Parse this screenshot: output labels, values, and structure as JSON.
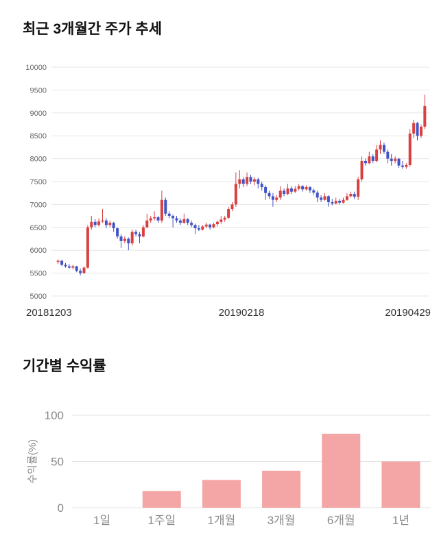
{
  "chart_data": [
    {
      "type": "candlestick",
      "title": "최근 3개월간 주가 추세",
      "x_labels": [
        "20181203",
        "20190218",
        "20190429"
      ],
      "ylim": [
        5000,
        10000
      ],
      "y_ticks": [
        5000,
        5500,
        6000,
        6500,
        7000,
        7500,
        8000,
        8500,
        9000,
        9500,
        10000
      ],
      "grid": true,
      "up_color": "#d94040",
      "down_color": "#4353c6",
      "axis_text_color": "#666666",
      "x_label_color": "#333333",
      "grid_color": "#e6e6e6",
      "candles_ohlc": [
        [
          5750,
          5800,
          5700,
          5770
        ],
        [
          5770,
          5790,
          5650,
          5680
        ],
        [
          5680,
          5720,
          5620,
          5650
        ],
        [
          5650,
          5700,
          5600,
          5620
        ],
        [
          5620,
          5680,
          5580,
          5650
        ],
        [
          5650,
          5660,
          5520,
          5550
        ],
        [
          5550,
          5600,
          5450,
          5500
        ],
        [
          5500,
          5650,
          5480,
          5620
        ],
        [
          5620,
          6550,
          5600,
          6500
        ],
        [
          6500,
          6750,
          6450,
          6620
        ],
        [
          6620,
          6680,
          6500,
          6550
        ],
        [
          6550,
          6700,
          6520,
          6630
        ],
        [
          6630,
          6900,
          6600,
          6650
        ],
        [
          6650,
          6700,
          6480,
          6550
        ],
        [
          6550,
          6650,
          6500,
          6600
        ],
        [
          6600,
          6620,
          6400,
          6480
        ],
        [
          6480,
          6500,
          6250,
          6300
        ],
        [
          6300,
          6350,
          6050,
          6200
        ],
        [
          6200,
          6300,
          6150,
          6250
        ],
        [
          6250,
          6280,
          6000,
          6150
        ],
        [
          6150,
          6450,
          6100,
          6400
        ],
        [
          6400,
          6450,
          6300,
          6350
        ],
        [
          6350,
          6400,
          6150,
          6300
        ],
        [
          6300,
          6550,
          6280,
          6500
        ],
        [
          6500,
          6800,
          6480,
          6650
        ],
        [
          6650,
          6750,
          6600,
          6700
        ],
        [
          6700,
          6850,
          6650,
          6720
        ],
        [
          6720,
          6750,
          6600,
          6650
        ],
        [
          6650,
          7300,
          6600,
          7100
        ],
        [
          7100,
          7150,
          6750,
          6800
        ],
        [
          6800,
          6850,
          6700,
          6750
        ],
        [
          6750,
          6780,
          6500,
          6700
        ],
        [
          6700,
          6750,
          6600,
          6650
        ],
        [
          6650,
          6700,
          6550,
          6600
        ],
        [
          6600,
          6800,
          6580,
          6680
        ],
        [
          6680,
          6700,
          6550,
          6600
        ],
        [
          6600,
          6650,
          6500,
          6550
        ],
        [
          6550,
          6580,
          6350,
          6480
        ],
        [
          6480,
          6550,
          6420,
          6450
        ],
        [
          6450,
          6550,
          6430,
          6520
        ],
        [
          6520,
          6600,
          6480,
          6560
        ],
        [
          6560,
          6580,
          6450,
          6500
        ],
        [
          6500,
          6600,
          6480,
          6570
        ],
        [
          6570,
          6650,
          6520,
          6620
        ],
        [
          6620,
          6750,
          6580,
          6670
        ],
        [
          6670,
          6750,
          6620,
          6710
        ],
        [
          6710,
          6950,
          6680,
          6900
        ],
        [
          6900,
          7050,
          6850,
          7000
        ],
        [
          7000,
          7700,
          6950,
          7450
        ],
        [
          7450,
          7750,
          7350,
          7550
        ],
        [
          7550,
          7600,
          7380,
          7450
        ],
        [
          7450,
          7700,
          7400,
          7600
        ],
        [
          7600,
          7650,
          7450,
          7500
        ],
        [
          7500,
          7600,
          7420,
          7550
        ],
        [
          7550,
          7580,
          7350,
          7450
        ],
        [
          7450,
          7500,
          7300,
          7380
        ],
        [
          7380,
          7420,
          7100,
          7250
        ],
        [
          7250,
          7300,
          7120,
          7180
        ],
        [
          7180,
          7250,
          6950,
          7100
        ],
        [
          7100,
          7200,
          7050,
          7150
        ],
        [
          7150,
          7400,
          7100,
          7300
        ],
        [
          7300,
          7350,
          7180,
          7230
        ],
        [
          7230,
          7450,
          7200,
          7350
        ],
        [
          7350,
          7400,
          7230,
          7280
        ],
        [
          7280,
          7400,
          7250,
          7340
        ],
        [
          7340,
          7450,
          7300,
          7400
        ],
        [
          7400,
          7420,
          7280,
          7330
        ],
        [
          7330,
          7420,
          7300,
          7380
        ],
        [
          7380,
          7400,
          7250,
          7310
        ],
        [
          7310,
          7350,
          7200,
          7260
        ],
        [
          7260,
          7300,
          7050,
          7150
        ],
        [
          7150,
          7200,
          7050,
          7100
        ],
        [
          7100,
          7250,
          7080,
          7180
        ],
        [
          7180,
          7200,
          6950,
          7050
        ],
        [
          7050,
          7120,
          6980,
          7020
        ],
        [
          7020,
          7150,
          7000,
          7080
        ],
        [
          7080,
          7120,
          7000,
          7040
        ],
        [
          7040,
          7150,
          7020,
          7100
        ],
        [
          7100,
          7250,
          7080,
          7180
        ],
        [
          7180,
          7280,
          7150,
          7230
        ],
        [
          7230,
          7280,
          7120,
          7170
        ],
        [
          7170,
          7600,
          7100,
          7550
        ],
        [
          7550,
          8050,
          7500,
          7950
        ],
        [
          7950,
          8000,
          7850,
          7900
        ],
        [
          7900,
          8150,
          7880,
          8050
        ],
        [
          8050,
          8100,
          7900,
          7950
        ],
        [
          7950,
          8300,
          7920,
          8200
        ],
        [
          8200,
          8400,
          8100,
          8300
        ],
        [
          8300,
          8350,
          8100,
          8150
        ],
        [
          8150,
          8200,
          7900,
          8000
        ],
        [
          8000,
          8100,
          7850,
          7950
        ],
        [
          7950,
          8050,
          7900,
          8000
        ],
        [
          8000,
          8020,
          7800,
          7850
        ],
        [
          7850,
          7950,
          7780,
          7820
        ],
        [
          7820,
          7900,
          7780,
          7860
        ],
        [
          7860,
          8650,
          7820,
          8550
        ],
        [
          8550,
          8850,
          8450,
          8780
        ],
        [
          8780,
          8800,
          8400,
          8500
        ],
        [
          8500,
          8750,
          8450,
          8700
        ],
        [
          8700,
          9400,
          8650,
          9150
        ]
      ]
    },
    {
      "type": "bar",
      "title": "기간별 수익률",
      "categories": [
        "1일",
        "1주일",
        "1개월",
        "3개월",
        "6개월",
        "1년"
      ],
      "values": [
        0,
        18,
        30,
        40,
        80,
        50
      ],
      "ylabel": "수익률(%)",
      "ylim": [
        0,
        100
      ],
      "y_ticks": [
        0,
        50,
        100
      ],
      "grid": true,
      "legend_position": "none",
      "bar_color": "#f4a5a5",
      "axis_text_color": "#8a8a8a",
      "grid_color": "#e3e3e3"
    }
  ]
}
